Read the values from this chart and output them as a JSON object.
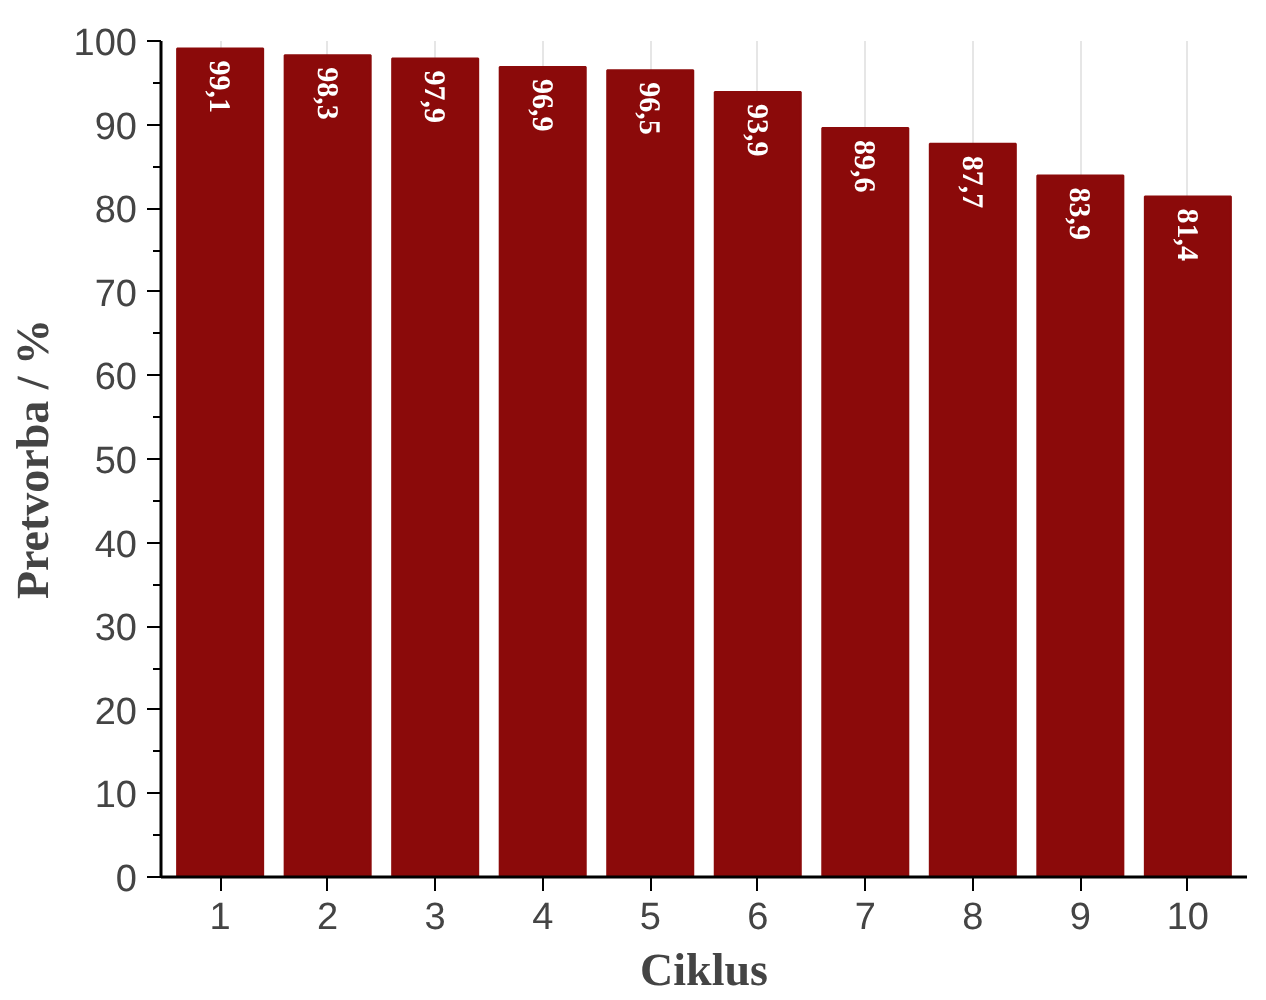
{
  "chart_data": {
    "type": "bar",
    "xlabel": "Ciklus",
    "ylabel": "Pretvorba / %",
    "categories": [
      "1",
      "2",
      "3",
      "4",
      "5",
      "6",
      "7",
      "8",
      "9",
      "10"
    ],
    "values": [
      99.1,
      98.3,
      97.9,
      96.9,
      96.5,
      93.9,
      89.6,
      87.7,
      83.9,
      81.4
    ],
    "value_labels": [
      "99,1",
      "98,3",
      "97,9",
      "96,9",
      "96,5",
      "93,9",
      "89,6",
      "87,7",
      "83,9",
      "81,4"
    ],
    "color": "#8b0a0a",
    "ylim": [
      0,
      100
    ],
    "yticks": [
      0,
      10,
      20,
      30,
      40,
      50,
      60,
      70,
      80,
      90,
      100
    ],
    "grid": "x"
  }
}
